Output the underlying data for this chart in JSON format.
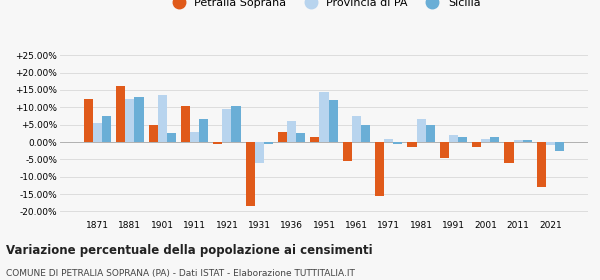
{
  "years": [
    1871,
    1881,
    1901,
    1911,
    1921,
    1931,
    1936,
    1951,
    1961,
    1971,
    1981,
    1991,
    2001,
    2011,
    2021
  ],
  "petralia": [
    12.5,
    16.0,
    5.0,
    10.5,
    -0.5,
    -18.5,
    3.0,
    1.5,
    -5.5,
    -15.5,
    -1.5,
    -4.5,
    -1.5,
    -6.0,
    -13.0
  ],
  "provincia": [
    5.5,
    12.5,
    13.5,
    3.0,
    9.5,
    -6.0,
    6.0,
    14.5,
    7.5,
    1.0,
    6.5,
    2.0,
    1.0,
    0.5,
    -1.0
  ],
  "sicilia": [
    7.5,
    13.0,
    2.5,
    6.5,
    10.5,
    -0.5,
    2.5,
    12.0,
    5.0,
    -0.5,
    5.0,
    1.5,
    1.5,
    0.5,
    -2.5
  ],
  "color_petralia": "#e05a1a",
  "color_provincia": "#b8d4ee",
  "color_sicilia": "#6aaed6",
  "title": "Variazione percentuale della popolazione ai censimenti",
  "subtitle": "COMUNE DI PETRALIA SOPRANA (PA) - Dati ISTAT - Elaborazione TUTTITALIA.IT",
  "ylabel_ticks": [
    -20.0,
    -15.0,
    -10.0,
    -5.0,
    0.0,
    5.0,
    10.0,
    15.0,
    20.0,
    25.0
  ],
  "ylim": [
    -22,
    28
  ],
  "bg_color": "#f7f7f7",
  "grid_color": "#dddddd"
}
